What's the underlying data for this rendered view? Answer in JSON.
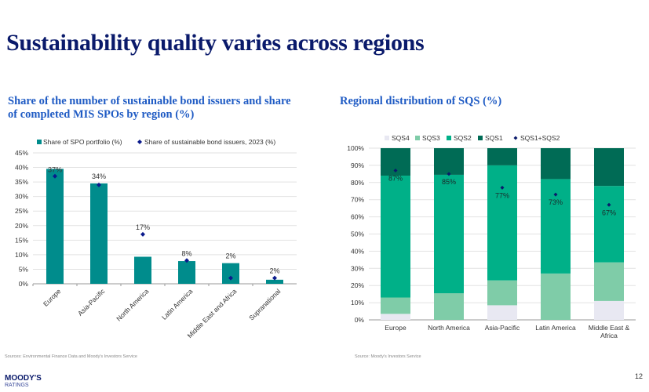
{
  "page": {
    "title": "Sustainability quality varies across regions",
    "page_number": "12",
    "logo_line1": "MOODY'S",
    "logo_line2": "RATINGS"
  },
  "chart_data": [
    {
      "type": "bar",
      "title": "Share of the number of sustainable bond issuers and share of completed MIS SPOs by region (%)",
      "source": "Sources: Environmental Finance Data and Moody's Investors Service",
      "categories": [
        "Europe",
        "Asia-Pacific",
        "North America",
        "Latin America",
        "Middle East and Africa",
        "Supranational"
      ],
      "series": [
        {
          "name": "Share of SPO portfolio (%)",
          "kind": "bar",
          "color": "#008c8c",
          "values": [
            39.5,
            34.5,
            9.3,
            7.8,
            7.1,
            1.4
          ]
        },
        {
          "name": "Share of sustainable bond issuers, 2023 (%)",
          "kind": "marker",
          "color": "#0a1a8c",
          "values": [
            37,
            34,
            17,
            8,
            2,
            2
          ],
          "labels": [
            "37%",
            "34%",
            "17%",
            "8%",
            "2%",
            "2%"
          ]
        }
      ],
      "yticks": [
        "0%",
        "5%",
        "10%",
        "15%",
        "20%",
        "25%",
        "30%",
        "35%",
        "40%",
        "45%"
      ],
      "ylim": [
        0,
        45
      ],
      "grid": true,
      "legend": "top"
    },
    {
      "type": "bar",
      "stacked": true,
      "title": "Regional distribution of SQS (%)",
      "source": "Source: Moody's Investors Service",
      "categories": [
        "Europe",
        "North America",
        "Asia-Pacific",
        "Latin America",
        "Middle East & Africa"
      ],
      "series": [
        {
          "name": "SQS4",
          "color": "#e8e8f2",
          "values": [
            3.5,
            0,
            8.5,
            0,
            11
          ]
        },
        {
          "name": "SQS3",
          "color": "#7fcca8",
          "values": [
            9.5,
            15.5,
            14.5,
            27,
            22.5
          ]
        },
        {
          "name": "SQS2",
          "color": "#00b088",
          "values": [
            71,
            69,
            67,
            55,
            44.5
          ]
        },
        {
          "name": "SQS1",
          "color": "#006b55",
          "values": [
            16,
            15.5,
            10,
            18,
            22
          ]
        },
        {
          "name": "SQS1+SQS2",
          "kind": "marker",
          "color": "#0a1a6b",
          "values": [
            87,
            85,
            77,
            73,
            67
          ],
          "labels": [
            "87%",
            "85%",
            "77%",
            "73%",
            "67%"
          ]
        }
      ],
      "yticks": [
        "0%",
        "10%",
        "20%",
        "30%",
        "40%",
        "50%",
        "60%",
        "70%",
        "80%",
        "90%",
        "100%"
      ],
      "ylim": [
        0,
        100
      ],
      "grid": true,
      "legend": "top"
    }
  ]
}
